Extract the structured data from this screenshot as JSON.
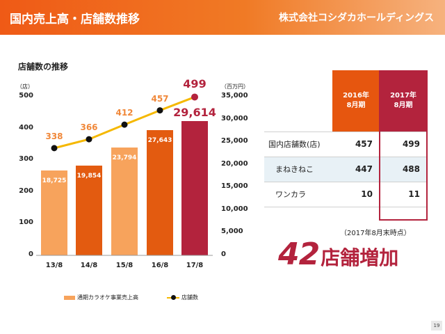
{
  "header": {
    "title": "国内売上高・店舗数推移",
    "logo": "株式会社コシダカホールディングス"
  },
  "chart_data": {
    "type": "bar+line",
    "title": "店舗数の推移",
    "categories": [
      "13/8",
      "14/8",
      "15/8",
      "16/8",
      "17/8"
    ],
    "series": [
      {
        "name": "通期カラオケ事業売上高",
        "kind": "bar",
        "axis": "right",
        "unit": "百万円",
        "values": [
          18725,
          19854,
          23794,
          27643,
          29614
        ],
        "labels": [
          "18,725",
          "19,854",
          "23,794",
          "27,643",
          "29,614"
        ]
      },
      {
        "name": "店舗数",
        "kind": "line",
        "axis": "left",
        "unit": "店",
        "values": [
          338,
          366,
          412,
          457,
          499
        ]
      }
    ],
    "left_axis": {
      "unit": "（店）",
      "range": [
        0,
        500
      ],
      "ticks": [
        "0",
        "100",
        "200",
        "300",
        "400",
        "500"
      ]
    },
    "right_axis": {
      "unit": "（百万円）",
      "range": [
        0,
        35000
      ],
      "ticks": [
        "0",
        "5,000",
        "10,000",
        "15,000",
        "20,000",
        "25,000",
        "30,000",
        "35,000"
      ]
    },
    "colors": {
      "bars": [
        "#f7a35c",
        "#e35b10",
        "#f7a35c",
        "#e35b10",
        "#b3233d"
      ],
      "line": "#f5b800",
      "marker": "#111111",
      "last_marker": "#b3233d"
    }
  },
  "table": {
    "headers": [
      {
        "year": "2016年",
        "period": "8月期"
      },
      {
        "year": "2017年",
        "period": "8月期"
      }
    ],
    "rows": [
      {
        "label": "国内店舗数(店)",
        "v2016": "457",
        "v2017": "499"
      },
      {
        "label": "まねきねこ",
        "v2016": "447",
        "v2017": "488"
      },
      {
        "label": "ワンカラ",
        "v2016": "10",
        "v2017": "11"
      }
    ],
    "note": "（2017年8月末時点）"
  },
  "headline": {
    "number": "42",
    "text": "店舗増加"
  },
  "page_number": "19"
}
